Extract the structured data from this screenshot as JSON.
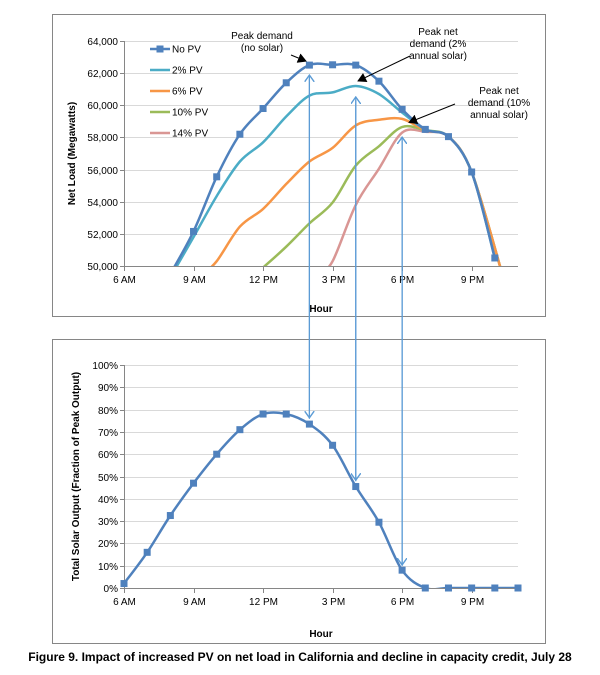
{
  "caption": "Figure 9. Impact of increased PV on net load in California and decline in capacity credit, July 28",
  "colors": {
    "no_pv": "#4f81bd",
    "pv2": "#4bacc6",
    "pv6": "#f79646",
    "pv10": "#9bbb59",
    "pv14": "#d99694",
    "grid": "#d9d9d9",
    "frame": "#868686",
    "arrow": "#5b9bd5"
  },
  "annotations": {
    "peak_no_solar": [
      "Peak demand",
      "(no solar)"
    ],
    "peak_2": [
      "Peak net",
      "demand (2%",
      "annual solar)"
    ],
    "peak_10": [
      "Peak net",
      "demand (10%",
      "annual solar)"
    ]
  },
  "chart_data": [
    {
      "type": "line",
      "xlabel": "Hour",
      "ylabel": "Net Load (Megawatts)",
      "xlim": [
        6,
        23
      ],
      "ylim": [
        50000,
        64000
      ],
      "x_ticks": [
        6,
        9,
        12,
        15,
        18,
        21
      ],
      "x_tick_labels": [
        "6 AM",
        "9 AM",
        "12 PM",
        "3 PM",
        "6 PM",
        "9 PM"
      ],
      "y_ticks": [
        50000,
        52000,
        54000,
        56000,
        58000,
        60000,
        62000,
        64000
      ],
      "y_tick_labels": [
        "50,000",
        "52,000",
        "54,000",
        "56,000",
        "58,000",
        "60,000",
        "62,000",
        "64,000"
      ],
      "grid": true,
      "legend": "top-left",
      "series": [
        {
          "name": "No PV",
          "color_key": "no_pv",
          "markers": true,
          "x": [
            8,
            9,
            10,
            11,
            12,
            13,
            14,
            15,
            16,
            17,
            18,
            19,
            20,
            21,
            22
          ],
          "values": [
            49500,
            52150,
            55550,
            58200,
            59800,
            61400,
            62500,
            62520,
            62500,
            61500,
            59750,
            58500,
            58050,
            55850,
            50500
          ]
        },
        {
          "name": "2% PV",
          "color_key": "pv2",
          "markers": false,
          "x": [
            8,
            9,
            10,
            11,
            12,
            13,
            14,
            15,
            16,
            17,
            18,
            19,
            20,
            21,
            22
          ],
          "values": [
            49300,
            51800,
            54350,
            56500,
            57700,
            59300,
            60600,
            60800,
            61200,
            60700,
            59550,
            58500,
            58050,
            55850,
            50500
          ]
        },
        {
          "name": "6% PV",
          "color_key": "pv6",
          "markers": false,
          "x": [
            9.4,
            10,
            11,
            12,
            13,
            14,
            15,
            16,
            17,
            18,
            19,
            20,
            21,
            22.3
          ],
          "values": [
            49500,
            50300,
            52450,
            53550,
            55100,
            56500,
            57350,
            58750,
            59100,
            59150,
            58450,
            58050,
            55850,
            49600
          ]
        },
        {
          "name": "10% PV",
          "color_key": "pv10",
          "markers": false,
          "x": [
            11.7,
            12,
            13,
            14,
            15,
            16,
            17,
            18,
            19,
            20,
            21,
            22.3
          ],
          "values": [
            49500,
            49900,
            51200,
            52650,
            53950,
            56250,
            57450,
            58650,
            58450,
            58050,
            55850,
            49600
          ]
        },
        {
          "name": "14% PV",
          "color_key": "pv14",
          "markers": false,
          "x": [
            14.4,
            15,
            16,
            17,
            18,
            19,
            20,
            21,
            22.3
          ],
          "values": [
            49500,
            50300,
            53800,
            56050,
            58300,
            58350,
            58050,
            55850,
            49600
          ]
        }
      ]
    },
    {
      "type": "line",
      "xlabel": "Hour",
      "ylabel": "Total Solar Output (Fraction of Peak Output)",
      "xlim": [
        6,
        23
      ],
      "ylim": [
        0,
        100
      ],
      "x_ticks": [
        6,
        9,
        12,
        15,
        18,
        21
      ],
      "x_tick_labels": [
        "6 AM",
        "9 AM",
        "12 PM",
        "3 PM",
        "6 PM",
        "9 PM"
      ],
      "y_ticks": [
        0,
        10,
        20,
        30,
        40,
        50,
        60,
        70,
        80,
        90,
        100
      ],
      "y_tick_labels": [
        "0%",
        "10%",
        "20%",
        "30%",
        "40%",
        "50%",
        "60%",
        "70%",
        "80%",
        "90%",
        "100%"
      ],
      "grid": true,
      "series": [
        {
          "name": "Solar output",
          "color_key": "no_pv",
          "markers": true,
          "x": [
            6,
            7,
            8,
            9,
            10,
            11,
            12,
            13,
            14,
            15,
            16,
            17,
            18,
            19,
            20,
            21,
            22,
            23
          ],
          "values": [
            2,
            16,
            32.5,
            47,
            60,
            71,
            78,
            78,
            73.5,
            64,
            45.5,
            29.5,
            8,
            0,
            0,
            0,
            0,
            0
          ]
        }
      ]
    }
  ]
}
